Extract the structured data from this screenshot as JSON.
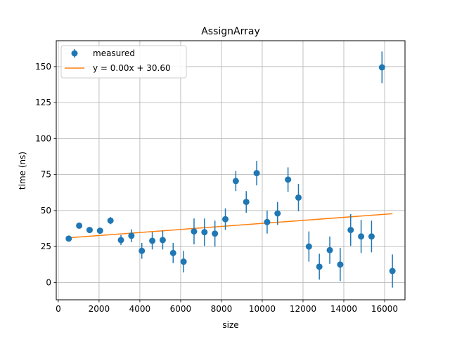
{
  "chart_data": {
    "type": "scatter",
    "title": "AssignArray",
    "xlabel": "size",
    "ylabel": "time (ns)",
    "xlim": [
      -100,
      17000
    ],
    "ylim": [
      -12,
      168
    ],
    "xticks": [
      0,
      2000,
      4000,
      6000,
      8000,
      10000,
      12000,
      14000,
      16000
    ],
    "yticks": [
      0,
      25,
      50,
      75,
      100,
      125,
      150
    ],
    "grid": true,
    "legend_position": "top-left",
    "colors": {
      "measured": "#1f77b4",
      "fit": "#ff7f0e"
    },
    "series": [
      {
        "name": "measured",
        "kind": "errorbar",
        "points": [
          {
            "x": 512,
            "y": 30.5,
            "err": 1.5
          },
          {
            "x": 1024,
            "y": 39.5,
            "err": 1.5
          },
          {
            "x": 1536,
            "y": 36.5,
            "err": 1.5
          },
          {
            "x": 2048,
            "y": 36.0,
            "err": 1.5
          },
          {
            "x": 2560,
            "y": 43.0,
            "err": 2.5
          },
          {
            "x": 3072,
            "y": 29.5,
            "err": 3.5
          },
          {
            "x": 3584,
            "y": 32.5,
            "err": 4.5
          },
          {
            "x": 4096,
            "y": 22.0,
            "err": 5.5
          },
          {
            "x": 4608,
            "y": 29.0,
            "err": 6.0
          },
          {
            "x": 5120,
            "y": 29.5,
            "err": 6.5
          },
          {
            "x": 5632,
            "y": 20.5,
            "err": 7.0
          },
          {
            "x": 6144,
            "y": 14.5,
            "err": 7.5
          },
          {
            "x": 6656,
            "y": 35.5,
            "err": 9.0
          },
          {
            "x": 7168,
            "y": 35.0,
            "err": 9.5
          },
          {
            "x": 7680,
            "y": 34.0,
            "err": 9.0
          },
          {
            "x": 8192,
            "y": 44.0,
            "err": 7.5
          },
          {
            "x": 8704,
            "y": 70.5,
            "err": 7.0
          },
          {
            "x": 9216,
            "y": 56.0,
            "err": 7.5
          },
          {
            "x": 9728,
            "y": 76.0,
            "err": 8.5
          },
          {
            "x": 10240,
            "y": 42.0,
            "err": 8.0
          },
          {
            "x": 10752,
            "y": 48.0,
            "err": 8.0
          },
          {
            "x": 11264,
            "y": 71.5,
            "err": 8.5
          },
          {
            "x": 11776,
            "y": 59.0,
            "err": 9.5
          },
          {
            "x": 12288,
            "y": 25.0,
            "err": 10.5
          },
          {
            "x": 12800,
            "y": 11.0,
            "err": 9.0
          },
          {
            "x": 13312,
            "y": 22.5,
            "err": 9.5
          },
          {
            "x": 13824,
            "y": 12.5,
            "err": 11.5
          },
          {
            "x": 14336,
            "y": 36.5,
            "err": 11.0
          },
          {
            "x": 14848,
            "y": 32.0,
            "err": 11.5
          },
          {
            "x": 15360,
            "y": 32.0,
            "err": 11.0
          },
          {
            "x": 15872,
            "y": 149.5,
            "err": 11.0
          },
          {
            "x": 16384,
            "y": 8.0,
            "err": 11.5
          }
        ]
      },
      {
        "name": "y = 0.00x + 30.60",
        "kind": "line",
        "x": [
          512,
          16384
        ],
        "y": [
          31.1,
          47.8
        ]
      }
    ]
  }
}
